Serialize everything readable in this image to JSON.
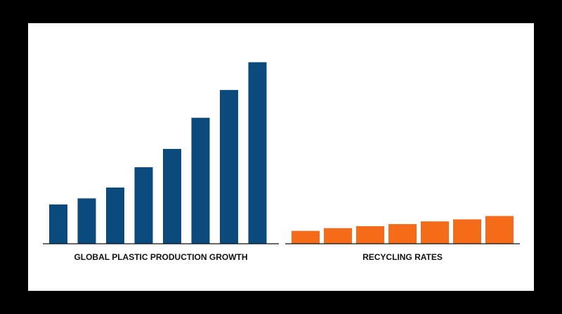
{
  "colors": {
    "frame_background": "#000000",
    "chart_background": "#ffffff",
    "production_bar": "#0b4a7d",
    "recycling_bar": "#f46b19",
    "baseline": "#111111"
  },
  "chart_data": [
    {
      "type": "bar",
      "title": "GLOBAL PLASTIC PRODUCTION GROWTH",
      "xlabel": "",
      "ylabel": "",
      "values": [
        58,
        67,
        83,
        113,
        140,
        186,
        227,
        268
      ],
      "ylim": [
        0,
        280
      ],
      "grid": false,
      "color": "#0b4a7d"
    },
    {
      "type": "bar",
      "title": "RECYCLING RATES",
      "xlabel": "",
      "ylabel": "",
      "values": [
        19,
        23,
        26,
        29,
        33,
        36,
        41
      ],
      "ylim": [
        0,
        280
      ],
      "grid": false,
      "color": "#f46b19"
    }
  ]
}
